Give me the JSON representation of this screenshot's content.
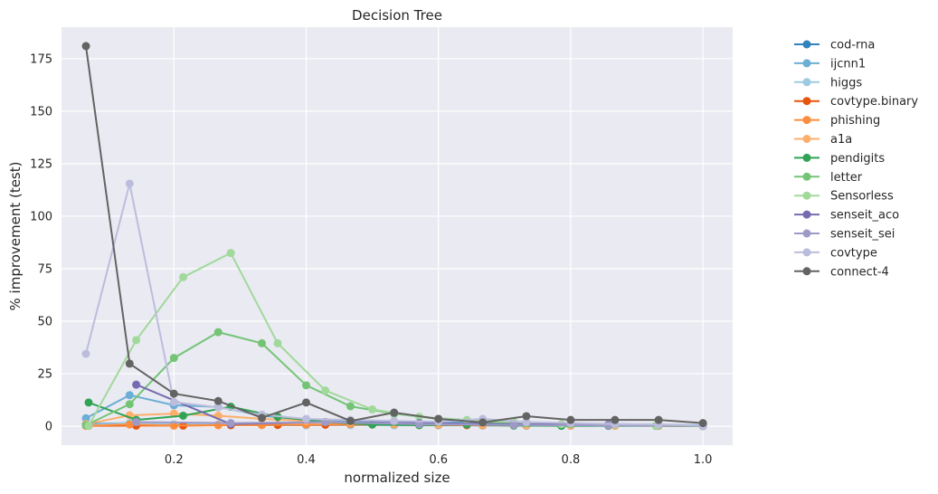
{
  "chart_data": {
    "type": "line",
    "title": "Decision Tree",
    "xlabel": "normalized size",
    "ylabel": "% improvement (test)",
    "xlim": [
      0.03,
      1.045
    ],
    "ylim": [
      -9,
      190
    ],
    "xticks": [
      0.2,
      0.4,
      0.6,
      0.8,
      1.0
    ],
    "xtick_labels": [
      "0.2",
      "0.4",
      "0.6",
      "0.8",
      "1.0"
    ],
    "yticks": [
      0,
      25,
      50,
      75,
      100,
      125,
      150,
      175
    ],
    "ytick_labels": [
      "0",
      "25",
      "50",
      "75",
      "100",
      "125",
      "150",
      "175"
    ],
    "grid": true,
    "legend_position": "outside-right",
    "series": [
      {
        "name": "cod-rna",
        "color": "#3182bd",
        "x": [
          0.067,
          0.133,
          0.2,
          0.267,
          0.333,
          0.4,
          0.467,
          0.533,
          0.6,
          0.667,
          0.733,
          0.8,
          0.867,
          0.933,
          1.0
        ],
        "y": [
          1.0,
          1.5,
          0.7,
          0.8,
          0.6,
          0.5,
          0.7,
          0.6,
          0.5,
          0.4,
          0.3,
          0.5,
          0.6,
          0.4,
          0.2
        ]
      },
      {
        "name": "ijcnn1",
        "color": "#6baed6",
        "x": [
          0.067,
          0.133,
          0.2,
          0.267,
          0.333,
          0.4,
          0.467,
          0.533,
          0.6,
          0.667,
          0.733,
          0.8,
          0.867,
          0.933,
          1.0
        ],
        "y": [
          3.8,
          14.8,
          10.0,
          9.2,
          5.0,
          3.0,
          2.5,
          2.0,
          2.0,
          1.5,
          1.5,
          1.0,
          1.0,
          0.8,
          0.5
        ]
      },
      {
        "name": "higgs",
        "color": "#9ecae1",
        "x": [
          0.067,
          0.133,
          0.2,
          0.267,
          0.333,
          0.4,
          0.467,
          0.533,
          0.6,
          0.667,
          0.733,
          0.8,
          0.867,
          0.933,
          1.0
        ],
        "y": [
          0.6,
          1.5,
          1.0,
          0.8,
          0.6,
          0.5,
          0.5,
          0.4,
          0.4,
          0.3,
          0.3,
          0.2,
          0.2,
          0.2,
          0.1
        ]
      },
      {
        "name": "covtype.binary",
        "color": "#e6550d",
        "x": [
          0.071,
          0.143,
          0.214,
          0.286,
          0.357,
          0.429,
          0.5,
          0.571,
          0.643,
          0.714,
          0.786,
          0.857,
          0.929,
          1.0
        ],
        "y": [
          0.2,
          0.3,
          0.3,
          0.5,
          0.6,
          0.7,
          0.8,
          0.6,
          0.5,
          0.4,
          0.6,
          0.5,
          0.3,
          0.2
        ]
      },
      {
        "name": "phishing",
        "color": "#fd8d3c",
        "x": [
          0.067,
          0.133,
          0.2,
          0.267,
          0.333,
          0.4,
          0.467,
          0.533,
          0.6,
          0.667,
          0.733,
          0.8,
          0.867,
          0.933,
          1.0
        ],
        "y": [
          0.2,
          0.8,
          0.3,
          0.5,
          0.6,
          0.8,
          1.0,
          0.9,
          0.7,
          0.5,
          0.4,
          0.3,
          0.3,
          0.2,
          0.1
        ]
      },
      {
        "name": "a1a",
        "color": "#fdae6b",
        "x": [
          0.067,
          0.133,
          0.2,
          0.267,
          0.333,
          0.4,
          0.467,
          0.533,
          0.6,
          0.667,
          0.733,
          0.8,
          0.867,
          0.933,
          1.0
        ],
        "y": [
          1.0,
          5.2,
          6.0,
          5.0,
          3.5,
          2.5,
          1.8,
          1.2,
          1.0,
          0.8,
          0.6,
          0.4,
          0.3,
          0.2,
          0.1
        ]
      },
      {
        "name": "pendigits",
        "color": "#31a354",
        "x": [
          0.071,
          0.143,
          0.214,
          0.286,
          0.357,
          0.429,
          0.5,
          0.571,
          0.643,
          0.714,
          0.786,
          0.857,
          0.929,
          1.0
        ],
        "y": [
          11.3,
          3.0,
          5.0,
          9.3,
          4.5,
          2.0,
          0.8,
          0.5,
          0.8,
          0.3,
          0.2,
          0.2,
          0.2,
          0.1
        ]
      },
      {
        "name": "letter",
        "color": "#74c476",
        "x": [
          0.067,
          0.133,
          0.2,
          0.267,
          0.333,
          0.4,
          0.467,
          0.533,
          0.6,
          0.667,
          0.733,
          0.8,
          0.867,
          0.933,
          1.0
        ],
        "y": [
          0.5,
          10.5,
          32.5,
          44.8,
          39.5,
          19.5,
          9.5,
          6.0,
          3.5,
          2.0,
          1.5,
          1.0,
          0.8,
          0.4,
          0.2
        ]
      },
      {
        "name": "Sensorless",
        "color": "#a1d99b",
        "x": [
          0.071,
          0.143,
          0.214,
          0.286,
          0.357,
          0.429,
          0.5,
          0.571,
          0.643,
          0.714,
          0.786,
          0.857,
          0.929,
          1.0
        ],
        "y": [
          0.2,
          41.0,
          71.0,
          82.5,
          39.5,
          17.0,
          8.0,
          4.5,
          3.0,
          2.0,
          1.0,
          0.5,
          0.3,
          0.1
        ]
      },
      {
        "name": "senseit_aco",
        "color": "#756bb1",
        "x": [
          0.143,
          0.286,
          0.429,
          0.571,
          0.714,
          0.857,
          1.0
        ],
        "y": [
          19.8,
          1.0,
          2.0,
          1.5,
          1.0,
          0.8,
          0.2
        ]
      },
      {
        "name": "senseit_sei",
        "color": "#9e9ac8",
        "x": [
          0.143,
          0.286,
          0.429,
          0.571,
          0.714,
          0.857,
          1.0
        ],
        "y": [
          2.0,
          1.5,
          2.0,
          1.0,
          0.6,
          0.4,
          0.2
        ]
      },
      {
        "name": "covtype",
        "color": "#bcbddc",
        "x": [
          0.067,
          0.133,
          0.2,
          0.267,
          0.333,
          0.4,
          0.467,
          0.533,
          0.6,
          0.667,
          0.733,
          0.8,
          0.867,
          0.933,
          1.0
        ],
        "y": [
          34.5,
          115.5,
          11.5,
          9.0,
          5.5,
          3.5,
          3.0,
          2.5,
          2.2,
          3.5,
          2.0,
          1.5,
          1.0,
          0.8,
          0.3
        ]
      },
      {
        "name": "connect-4",
        "color": "#636363",
        "x": [
          0.067,
          0.133,
          0.2,
          0.267,
          0.333,
          0.4,
          0.467,
          0.533,
          0.6,
          0.667,
          0.733,
          0.8,
          0.867,
          0.933,
          1.0
        ],
        "y": [
          181.0,
          29.8,
          15.5,
          12.0,
          4.0,
          11.3,
          2.5,
          6.5,
          3.5,
          1.8,
          4.8,
          3.0,
          3.0,
          3.0,
          1.5
        ]
      }
    ]
  }
}
